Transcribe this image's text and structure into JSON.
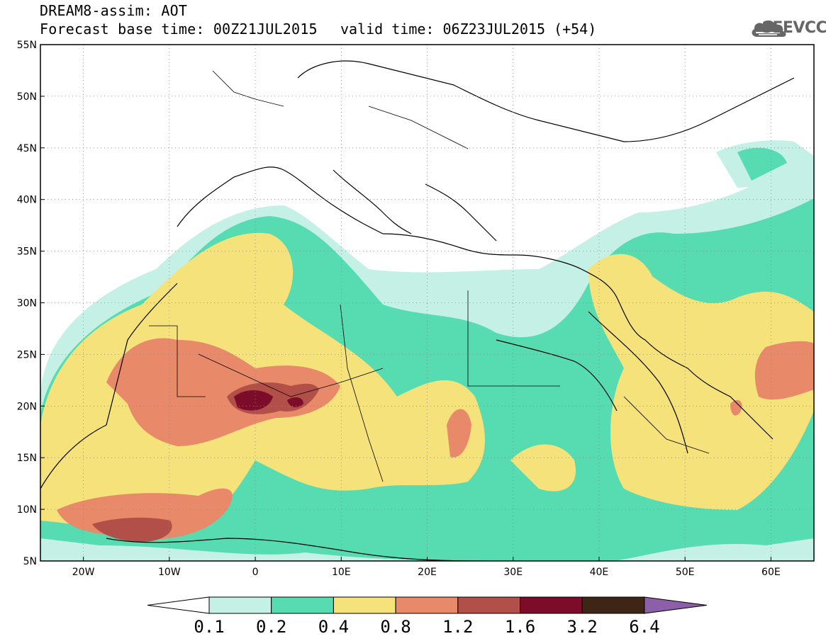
{
  "header": {
    "title": "DREAM8-assim: AOT",
    "base_time": "Forecast base time: 00Z21JUL2015",
    "valid_time": "valid time: 06Z23JUL2015 (+54)"
  },
  "logo": {
    "text": "SEEVCCC",
    "icon": "cloud-icon"
  },
  "map": {
    "lon_range": [
      -25,
      65
    ],
    "lat_range": [
      5,
      55
    ],
    "lat_labels": [
      "5N",
      "10N",
      "15N",
      "20N",
      "25N",
      "30N",
      "35N",
      "40N",
      "45N",
      "50N",
      "55N"
    ],
    "lon_labels": [
      "20W",
      "10W",
      "0",
      "10E",
      "20E",
      "30E",
      "40E",
      "50E",
      "60E"
    ],
    "gridlines": "dotted"
  },
  "colorbar": {
    "labels": [
      "0.1",
      "0.2",
      "0.4",
      "0.8",
      "1.2",
      "1.6",
      "3.2",
      "6.4"
    ],
    "colors": [
      "#ffffff",
      "#c5f0e6",
      "#57dcb2",
      "#f5e27a",
      "#e8896a",
      "#b24f48",
      "#7d0b2a",
      "#3e2516",
      "#8c5fa8"
    ]
  }
}
